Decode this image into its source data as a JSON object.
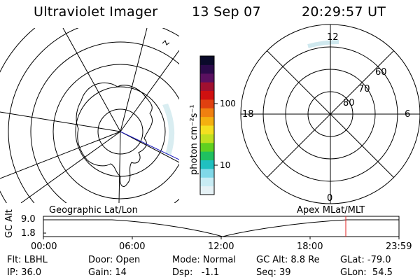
{
  "header": {
    "title": "Ultraviolet Imager",
    "date": "13 Sep 07",
    "time": "20:29:57 UT"
  },
  "colorbar": {
    "unit_label": "photon cm⁻²s⁻¹",
    "ticks": [
      "100",
      "10"
    ],
    "colors": [
      "#0a0a2a",
      "#2b0a4a",
      "#5a1060",
      "#a01030",
      "#d01010",
      "#e04010",
      "#f08010",
      "#f4b010",
      "#f4e020",
      "#c0e020",
      "#60d020",
      "#20c060",
      "#20c0c0",
      "#80d8e8",
      "#c8ecf4",
      "#e6f2f6"
    ]
  },
  "geo_map": {
    "label": "Geographic Lat/Lon"
  },
  "polar_plot": {
    "label": "Apex MLat/MLT",
    "hour_labels": [
      "12",
      "18",
      "6",
      "0"
    ],
    "lat_labels": [
      "60",
      "70",
      "80"
    ]
  },
  "altitude_strip": {
    "ylabel": "GC Alt",
    "yticks": [
      "9.0",
      "1.8"
    ],
    "xticks": [
      "00:00",
      "06:00",
      "12:00",
      "18:00",
      "23:59"
    ],
    "marker_color": "#e02020"
  },
  "info": {
    "filter": "Flt: LBHL",
    "ip": "IP: 36.0",
    "door": "Door: Open",
    "gain": "Gain: 14",
    "mode": "Mode: Normal",
    "dsp": "Dsp:   -1.1",
    "gc_alt": "GC Alt: 8.8 Re",
    "seq": "Seq: 39",
    "glat": "GLat: -79.0",
    "glon": "GLon:  54.5"
  }
}
